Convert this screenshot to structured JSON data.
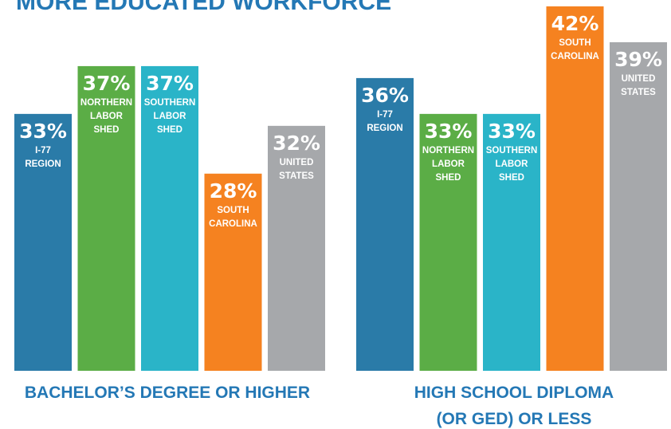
{
  "title": "MORE EDUCATED WORKFORCE",
  "chart_data": [
    {
      "type": "bar",
      "title": "BACHELOR’S DEGREE OR HIGHER",
      "categories": [
        [
          "I-77",
          "REGION"
        ],
        [
          "NORTHERN",
          "LABOR",
          "SHED"
        ],
        [
          "SOUTHERN",
          "LABOR",
          "SHED"
        ],
        [
          "SOUTH",
          "CAROLINA"
        ],
        [
          "UNITED",
          "STATES"
        ]
      ],
      "values": [
        33,
        37,
        37,
        28,
        32
      ],
      "value_labels": [
        "33%",
        "37%",
        "37%",
        "28%",
        "32%"
      ],
      "colors": [
        "#2a7ba8",
        "#5bad46",
        "#2ab4c8",
        "#f58220",
        "#a6a8ab"
      ],
      "ylim": [
        11.5,
        42
      ]
    },
    {
      "type": "bar",
      "title": [
        "HIGH SCHOOL DIPLOMA",
        "(OR GED) OR LESS"
      ],
      "categories": [
        [
          "I-77",
          "REGION"
        ],
        [
          "NORTHERN",
          "LABOR",
          "SHED"
        ],
        [
          "SOUTHERN",
          "LABOR",
          "SHED"
        ],
        [
          "SOUTH",
          "CAROLINA"
        ],
        [
          "UNITED",
          "STATES"
        ]
      ],
      "values": [
        36,
        33,
        33,
        42,
        39
      ],
      "value_labels": [
        "36%",
        "33%",
        "33%",
        "42%",
        "39%"
      ],
      "colors": [
        "#2a7ba8",
        "#5bad46",
        "#2ab4c8",
        "#f58220",
        "#a6a8ab"
      ],
      "ylim": [
        11.5,
        42
      ]
    }
  ]
}
